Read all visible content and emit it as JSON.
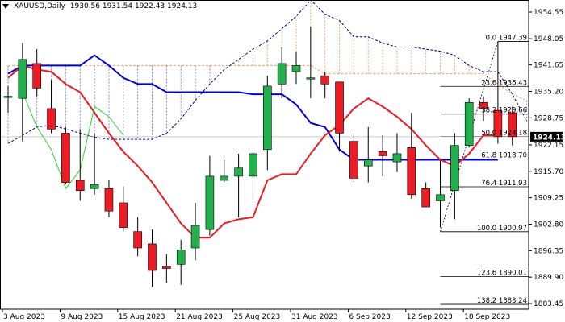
{
  "header": {
    "symbol": "XAUUSD,Daily",
    "ohlc": "1930.56 1931.54 1922.43 1924.13"
  },
  "chart_data": {
    "type": "candlestick",
    "symbol": "XAUUSD",
    "timeframe": "Daily",
    "ylim": [
      1883.45,
      1957.5
    ],
    "y_ticks": [
      "1954.55",
      "1948.05",
      "1941.65",
      "1935.20",
      "1928.75",
      "1922.15",
      "1915.70",
      "1909.25",
      "1902.80",
      "1896.35",
      "1889.90",
      "1883.45"
    ],
    "x_labels": [
      "3 Aug 2023",
      "9 Aug 2023",
      "15 Aug 2023",
      "21 Aug 2023",
      "25 Aug 2023",
      "31 Aug 2023",
      "6 Sep 2023",
      "12 Sep 2023",
      "18 Sep 2023"
    ],
    "x_label_index": [
      0,
      4,
      8,
      12,
      16,
      20,
      24,
      28,
      32
    ],
    "current_price": "1924.13",
    "candles": [
      {
        "o": 1934.0,
        "h": 1936.5,
        "l": 1930.0,
        "c": 1934.0
      },
      {
        "o": 1933.5,
        "h": 1947.0,
        "l": 1923.0,
        "c": 1943.0
      },
      {
        "o": 1942.0,
        "h": 1945.5,
        "l": 1934.0,
        "c": 1936.0
      },
      {
        "o": 1931.0,
        "h": 1938.0,
        "l": 1925.0,
        "c": 1926.0
      },
      {
        "o": 1925.0,
        "h": 1926.5,
        "l": 1912.5,
        "c": 1913.0
      },
      {
        "o": 1913.5,
        "h": 1926.0,
        "l": 1908.5,
        "c": 1911.0
      },
      {
        "o": 1911.5,
        "h": 1925.0,
        "l": 1910.0,
        "c": 1912.5
      },
      {
        "o": 1911.5,
        "h": 1913.5,
        "l": 1904.5,
        "c": 1906.0
      },
      {
        "o": 1908.0,
        "h": 1912.0,
        "l": 1901.0,
        "c": 1902.0
      },
      {
        "o": 1901.0,
        "h": 1904.5,
        "l": 1895.0,
        "c": 1897.0
      },
      {
        "o": 1898.0,
        "h": 1901.5,
        "l": 1887.5,
        "c": 1891.5
      },
      {
        "o": 1892.5,
        "h": 1895.5,
        "l": 1888.5,
        "c": 1892.0
      },
      {
        "o": 1893.0,
        "h": 1899.0,
        "l": 1888.0,
        "c": 1896.5
      },
      {
        "o": 1897.0,
        "h": 1908.0,
        "l": 1894.0,
        "c": 1902.5
      },
      {
        "o": 1901.5,
        "h": 1919.5,
        "l": 1900.0,
        "c": 1914.5
      },
      {
        "o": 1913.5,
        "h": 1918.5,
        "l": 1913.0,
        "c": 1914.5
      },
      {
        "o": 1914.5,
        "h": 1920.0,
        "l": 1904.5,
        "c": 1916.5
      },
      {
        "o": 1914.5,
        "h": 1921.0,
        "l": 1908.0,
        "c": 1920.0
      },
      {
        "o": 1921.0,
        "h": 1939.0,
        "l": 1916.0,
        "c": 1936.5
      },
      {
        "o": 1937.0,
        "h": 1946.0,
        "l": 1933.5,
        "c": 1942.0
      },
      {
        "o": 1940.0,
        "h": 1945.0,
        "l": 1937.0,
        "c": 1941.5
      },
      {
        "o": 1938.5,
        "h": 1951.0,
        "l": 1933.5,
        "c": 1938.5
      },
      {
        "o": 1939.0,
        "h": 1940.0,
        "l": 1933.5,
        "c": 1937.0
      },
      {
        "o": 1937.5,
        "h": 1937.5,
        "l": 1920.5,
        "c": 1925.0
      },
      {
        "o": 1923.0,
        "h": 1925.0,
        "l": 1913.0,
        "c": 1914.0
      },
      {
        "o": 1917.0,
        "h": 1926.5,
        "l": 1913.0,
        "c": 1918.5
      },
      {
        "o": 1920.5,
        "h": 1924.5,
        "l": 1914.5,
        "c": 1919.5
      },
      {
        "o": 1918.0,
        "h": 1925.0,
        "l": 1915.5,
        "c": 1920.0
      },
      {
        "o": 1921.5,
        "h": 1930.0,
        "l": 1909.0,
        "c": 1910.0
      },
      {
        "o": 1911.5,
        "h": 1913.0,
        "l": 1907.0,
        "c": 1907.0
      },
      {
        "o": 1908.5,
        "h": 1918.5,
        "l": 1902.0,
        "c": 1910.0
      },
      {
        "o": 1911.0,
        "h": 1925.0,
        "l": 1904.0,
        "c": 1922.0
      },
      {
        "o": 1922.0,
        "h": 1933.5,
        "l": 1921.5,
        "c": 1932.5
      },
      {
        "o": 1932.5,
        "h": 1934.0,
        "l": 1928.0,
        "c": 1931.0
      },
      {
        "o": 1930.56,
        "h": 1947.39,
        "l": 1922.43,
        "c": 1924.13
      },
      {
        "o": 1930.0,
        "h": 1931.5,
        "l": 1922.0,
        "c": 1924.13
      }
    ],
    "tenkan": [
      1938.5,
      1941.5,
      1940.5,
      1940.0,
      1937.0,
      1935.0,
      1930.0,
      1925.0,
      1920.5,
      1917.0,
      1913.0,
      1908.0,
      1903.0,
      1899.5,
      1899.5,
      1903.0,
      1904.0,
      1904.5,
      1913.5,
      1915.0,
      1915.0,
      1920.0,
      1924.5,
      1927.0,
      1931.0,
      1933.5,
      1931.5,
      1929.0,
      1926.0,
      1922.0,
      1918.5,
      1917.0,
      1920.0,
      1924.5,
      1924.5
    ],
    "kijun": [
      1939.5,
      1941.5,
      1941.5,
      1941.5,
      1941.5,
      1941.5,
      1944.0,
      1941.5,
      1938.5,
      1937.0,
      1937.0,
      1935.0,
      1935.0,
      1935.0,
      1935.0,
      1935.0,
      1935.0,
      1934.5,
      1934.5,
      1934.5,
      1932.0,
      1927.5,
      1926.5,
      1921.0,
      1918.5,
      1918.5,
      1918.5,
      1918.5,
      1918.5,
      1918.5,
      1918.5,
      1918.5,
      1918.5,
      1918.5,
      1918.5
    ],
    "chikou": [
      1935.0,
      1926.5,
      1921.0,
      1911.5,
      1916.0,
      1931.5,
      1929.0,
      1924.5
    ],
    "span_a": [
      1941.5,
      1941.5,
      1941.5,
      1941.5,
      1941.5,
      1941.5,
      1941.5,
      1941.5,
      1941.5,
      1941.5,
      1941.5,
      1941.5,
      1941.5,
      1941.5,
      1941.5,
      1941.5,
      1941.5,
      1941.5,
      1941.5,
      1941.5,
      1941.5,
      1941.5,
      1939.5,
      1939.5,
      1939.5,
      1939.5,
      1939.5,
      1939.5,
      1939.5,
      1939.5,
      1939.5,
      1939.5,
      1939.5,
      1939.5,
      1937.0,
      1934.5,
      1933.0,
      1932.0,
      1931.0,
      1929.5
    ],
    "span_b": [
      1922.5,
      1924.5,
      1926.5,
      1927.0,
      1926.0,
      1925.0,
      1924.0,
      1923.5,
      1923.5,
      1923.5,
      1923.5,
      1925.0,
      1928.5,
      1933.0,
      1937.0,
      1940.5,
      1943.0,
      1945.5,
      1947.5,
      1950.5,
      1953.5,
      1957.5,
      1954.0,
      1952.5,
      1948.5,
      1948.5,
      1947.0,
      1946.0,
      1946.0,
      1945.5,
      1945.0,
      1944.0,
      1941.5,
      1940.0,
      1940.0,
      1934.5,
      1928.0,
      1923.5,
      1922.5,
      1922.0
    ],
    "fibonacci": [
      {
        "label": "0.0 1947.39",
        "price": 1947.39,
        "x_start": 34
      },
      {
        "label": "23.6 1936.43",
        "price": 1936.43,
        "x_start": 30
      },
      {
        "label": "38.2 1929.66",
        "price": 1929.66,
        "x_start": 30
      },
      {
        "label": "50.0 1924.18",
        "price": 1924.18,
        "x_start": 30
      },
      {
        "label": "61.8 1918.70",
        "price": 1918.7,
        "x_start": 30
      },
      {
        "label": "76.4 1911.93",
        "price": 1911.93,
        "x_start": 30
      },
      {
        "label": "100.0 1900.97",
        "price": 1900.97,
        "x_start": 30
      },
      {
        "label": "123.6 1890.01",
        "price": 1890.01,
        "x_start": 30
      },
      {
        "label": "138.2 1883.24",
        "price": 1883.24,
        "x_start": 30
      }
    ],
    "colors": {
      "bull": "#22b14c",
      "bear": "#ed1c24",
      "tenkan": "#ed1c24",
      "kijun": "#0000e6",
      "chikou": "#2bd52b",
      "cloud_up": "#f4a460",
      "cloud_down": "#8080d0"
    },
    "grid": false
  }
}
